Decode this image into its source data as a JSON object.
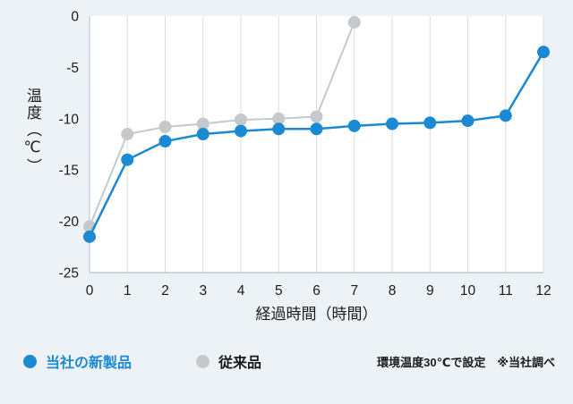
{
  "chart_data": {
    "type": "line",
    "title": "",
    "xlabel": "経過時間（時間）",
    "ylabel": "温度（℃）",
    "xlim": [
      0,
      12
    ],
    "ylim": [
      -25,
      0
    ],
    "xticks": [
      0,
      1,
      2,
      3,
      4,
      5,
      6,
      7,
      8,
      9,
      10,
      11,
      12
    ],
    "yticks": [
      0,
      -5,
      -10,
      -15,
      -20,
      -25
    ],
    "grid": "vertical",
    "legend_position": "bottom",
    "series": [
      {
        "name": "従来品",
        "key": "conventional-product",
        "color": "#c6c9cc",
        "line_width": 2,
        "point_radius": 7,
        "x": [
          0,
          1,
          2,
          3,
          4,
          5,
          6,
          7
        ],
        "values": [
          -20.5,
          -11.5,
          -10.8,
          -10.5,
          -10.1,
          -10.0,
          -9.8,
          -0.6
        ]
      },
      {
        "name": "当社の新製品",
        "key": "new-product",
        "color": "#1b8ad2",
        "line_width": 2.5,
        "point_radius": 7,
        "x": [
          0,
          1,
          2,
          3,
          4,
          5,
          6,
          7,
          8,
          9,
          10,
          11,
          12
        ],
        "values": [
          -21.5,
          -14.0,
          -12.2,
          -11.5,
          -11.2,
          -11.0,
          -11.0,
          -10.7,
          -10.5,
          -10.4,
          -10.2,
          -9.7,
          -3.5
        ]
      }
    ]
  },
  "legend": {
    "items": [
      {
        "label": "当社の新製品",
        "color": "#1b8ad2",
        "text_color": "#1b8ad2"
      },
      {
        "label": "従来品",
        "color": "#c6c9cc",
        "text_color": "#1b1b1b"
      }
    ],
    "footnote": "環境温度30℃で設定　※当社調べ"
  },
  "colors": {
    "background": "#edf2f7",
    "plot_background": "#ffffff",
    "gridline": "#d9dde2",
    "axis_line": "#b9bfc6",
    "tick_text": "#1b1b1b"
  }
}
